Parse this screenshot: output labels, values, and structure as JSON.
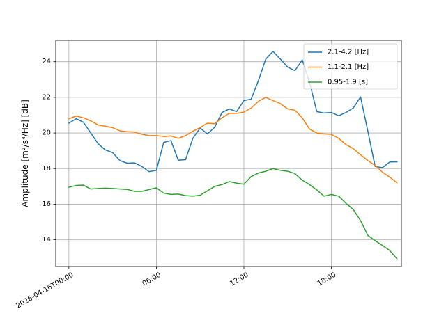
{
  "chart_data": {
    "type": "line",
    "ylabel": "Amplitude [m²/s⁴/Hz] [dB]",
    "xlabel": "",
    "x_ticks": [
      {
        "hour": 0,
        "label": "2026-04-16T00:00"
      },
      {
        "hour": 6,
        "label": "06:00"
      },
      {
        "hour": 12,
        "label": "12:00"
      },
      {
        "hour": 18,
        "label": "18:00"
      }
    ],
    "xlim": [
      -0.0,
      23.7
    ],
    "ylim": [
      12.5,
      25.2
    ],
    "yticks": [
      14,
      16,
      18,
      20,
      22,
      24
    ],
    "grid": true,
    "legend_position": "upper right",
    "x": [
      0,
      0.5,
      1,
      1.5,
      2,
      2.5,
      3,
      3.5,
      4,
      4.5,
      5,
      5.5,
      6,
      6.5,
      7,
      7.5,
      8,
      8.5,
      9,
      9.5,
      10,
      10.5,
      11,
      11.5,
      12,
      12.5,
      13,
      13.5,
      14,
      14.5,
      15,
      15.5,
      16,
      16.5,
      17,
      17.5,
      18,
      18.5,
      19,
      19.5,
      20,
      20.5,
      21,
      21.5,
      22,
      22.5
    ],
    "series": [
      {
        "name": "2.1-4.2 [Hz]",
        "color": "#1f77b4",
        "values": [
          20.55,
          20.8,
          20.6,
          20.0,
          19.4,
          19.05,
          18.9,
          18.45,
          18.3,
          18.32,
          18.12,
          17.83,
          17.9,
          19.47,
          19.57,
          18.47,
          18.5,
          19.7,
          20.28,
          19.95,
          20.32,
          21.15,
          21.35,
          21.2,
          21.82,
          21.9,
          22.95,
          24.15,
          24.58,
          24.15,
          23.7,
          23.5,
          24.1,
          22.85,
          21.2,
          21.12,
          21.15,
          20.97,
          21.15,
          21.4,
          22.02,
          20.1,
          18.12,
          18.05,
          18.37,
          18.38
        ]
      },
      {
        "name": "1.1-2.1 [Hz]",
        "color": "#ff7f0e",
        "values": [
          20.8,
          20.95,
          20.85,
          20.68,
          20.45,
          20.38,
          20.3,
          20.12,
          20.07,
          20.05,
          19.93,
          19.85,
          19.85,
          19.8,
          19.83,
          19.7,
          19.85,
          20.1,
          20.3,
          20.55,
          20.52,
          20.85,
          21.1,
          21.1,
          21.17,
          21.4,
          21.78,
          22.0,
          21.82,
          21.65,
          21.35,
          21.28,
          20.85,
          20.22,
          20.0,
          19.95,
          19.92,
          19.7,
          19.35,
          19.12,
          18.78,
          18.45,
          18.18,
          17.8,
          17.52,
          17.2
        ]
      },
      {
        "name": "0.95-1.9 [s]",
        "color": "#2ca02c",
        "values": [
          16.95,
          17.05,
          17.07,
          16.85,
          16.88,
          16.9,
          16.88,
          16.85,
          16.83,
          16.72,
          16.72,
          16.82,
          16.92,
          16.62,
          16.55,
          16.57,
          16.48,
          16.45,
          16.5,
          16.75,
          17.0,
          17.1,
          17.27,
          17.18,
          17.12,
          17.55,
          17.75,
          17.85,
          18.0,
          17.9,
          17.85,
          17.72,
          17.35,
          17.1,
          16.8,
          16.45,
          16.55,
          16.45,
          16.05,
          15.7,
          15.08,
          14.25,
          13.95,
          13.68,
          13.4,
          12.93
        ]
      }
    ]
  }
}
